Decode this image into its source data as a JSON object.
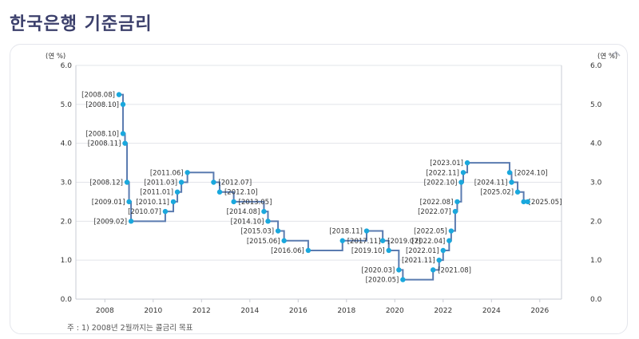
{
  "page": {
    "title": "한국은행 기준금리"
  },
  "chart_data": {
    "type": "line",
    "subtype": "step",
    "title": "",
    "ylabel": "(연 %)",
    "ylabel_right": "(연 %)",
    "ylim": [
      0,
      6
    ],
    "yticks": [
      "0.0",
      "1.0",
      "2.0",
      "3.0",
      "4.0",
      "5.0",
      "6.0"
    ],
    "xlim": [
      2006.8,
      2026.9
    ],
    "xticks": [
      "2008",
      "2010",
      "2012",
      "2014",
      "2016",
      "2018",
      "2020",
      "2022",
      "2024",
      "2026"
    ],
    "grid": true,
    "line_color": "#5a7bb0",
    "marker_color": "#1aa8dd",
    "series": [
      {
        "points": [
          {
            "x": "2008.08",
            "y": 5.25,
            "label": "[2008.08]"
          },
          {
            "x": "2008.10",
            "y": 5.0,
            "label": "[2008.10]"
          },
          {
            "x": "2008.10",
            "y": 4.25,
            "label": "[2008.10]"
          },
          {
            "x": "2008.11",
            "y": 4.0,
            "label": "[2008.11]"
          },
          {
            "x": "2008.12",
            "y": 3.0,
            "label": "[2008.12]"
          },
          {
            "x": "2009.01",
            "y": 2.5,
            "label": "[2009.01]"
          },
          {
            "x": "2009.02",
            "y": 2.0,
            "label": "[2009.02]"
          },
          {
            "x": "2010.07",
            "y": 2.25,
            "label": "[2010.07]"
          },
          {
            "x": "2010.11",
            "y": 2.5,
            "label": "[2010.11]"
          },
          {
            "x": "2011.01",
            "y": 2.75,
            "label": "[2011.01]"
          },
          {
            "x": "2011.03",
            "y": 3.0,
            "label": "[2011.03]"
          },
          {
            "x": "2011.06",
            "y": 3.25,
            "label": "[2011.06]"
          },
          {
            "x": "2012.07",
            "y": 3.0,
            "label": "[2012.07]"
          },
          {
            "x": "2012.10",
            "y": 2.75,
            "label": "[2012.10]"
          },
          {
            "x": "2013.05",
            "y": 2.5,
            "label": "[2013.05]"
          },
          {
            "x": "2014.08",
            "y": 2.25,
            "label": "[2014.08]"
          },
          {
            "x": "2014.10",
            "y": 2.0,
            "label": "[2014.10]"
          },
          {
            "x": "2015.03",
            "y": 1.75,
            "label": "[2015.03]"
          },
          {
            "x": "2015.06",
            "y": 1.5,
            "label": "[2015.06]"
          },
          {
            "x": "2016.06",
            "y": 1.25,
            "label": "[2016.06]"
          },
          {
            "x": "2017.11",
            "y": 1.5,
            "label": "[2017.11]"
          },
          {
            "x": "2018.11",
            "y": 1.75,
            "label": "[2018.11]"
          },
          {
            "x": "2019.07",
            "y": 1.5,
            "label": "[2019.07]"
          },
          {
            "x": "2019.10",
            "y": 1.25,
            "label": "[2019.10]"
          },
          {
            "x": "2020.03",
            "y": 0.75,
            "label": "[2020.03]"
          },
          {
            "x": "2020.05",
            "y": 0.5,
            "label": "[2020.05]"
          },
          {
            "x": "2021.08",
            "y": 0.75,
            "label": "[2021.08]"
          },
          {
            "x": "2021.11",
            "y": 1.0,
            "label": "[2021.11]"
          },
          {
            "x": "2022.01",
            "y": 1.25,
            "label": "[2022.01]"
          },
          {
            "x": "2022.04",
            "y": 1.5,
            "label": "[2022.04]"
          },
          {
            "x": "2022.05",
            "y": 1.75,
            "label": "[2022.05]"
          },
          {
            "x": "2022.07",
            "y": 2.25,
            "label": "[2022.07]"
          },
          {
            "x": "2022.08",
            "y": 2.5,
            "label": "[2022.08]"
          },
          {
            "x": "2022.10",
            "y": 3.0,
            "label": "[2022.10]"
          },
          {
            "x": "2022.11",
            "y": 3.25,
            "label": "[2022.11]"
          },
          {
            "x": "2023.01",
            "y": 3.5,
            "label": "[2023.01]"
          },
          {
            "x": "2024.10",
            "y": 3.25,
            "label": "[2024.10]"
          },
          {
            "x": "2024.11",
            "y": 3.0,
            "label": "[2024.11]"
          },
          {
            "x": "2025.02",
            "y": 2.75,
            "label": "[2025.02]"
          },
          {
            "x": "2025.05",
            "y": 2.5,
            "label": "[2025.05]"
          }
        ],
        "end_x": "2025.07"
      }
    ],
    "footnote": "주 : 1) 2008년 2월까지는 콜금리 목표"
  }
}
